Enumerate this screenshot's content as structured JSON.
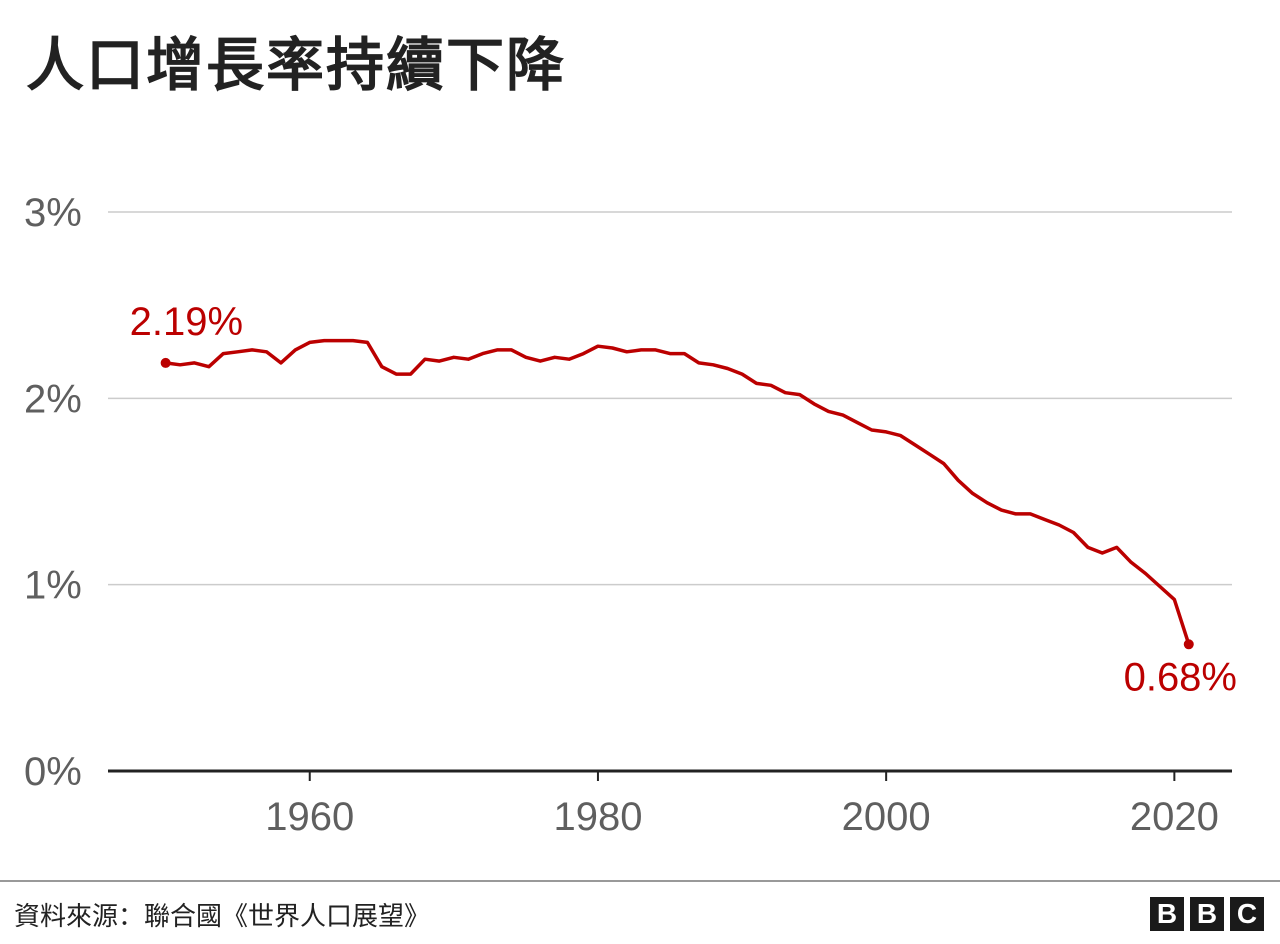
{
  "title": "人口增長率持續下降",
  "source": "資料來源：聯合國《世界人口展望》",
  "logo": [
    "B",
    "B",
    "C"
  ],
  "colors": {
    "line": "#bb0000",
    "grid": "#cccccc",
    "axis": "#222222",
    "tick_text": "#5f5f5f"
  },
  "chart_data": {
    "type": "line",
    "title": "人口增長率持續下降",
    "xlabel": "",
    "ylabel": "",
    "xlim": [
      1946,
      2024
    ],
    "ylim": [
      0,
      3
    ],
    "x_ticks": [
      1960,
      1980,
      2000,
      2020
    ],
    "y_ticks": [
      0,
      1,
      2,
      3
    ],
    "y_tick_labels": [
      "0%",
      "1%",
      "2%",
      "3%"
    ],
    "grid": true,
    "legend": "none",
    "series": [
      {
        "x": [
          1950,
          1951,
          1952,
          1953,
          1954,
          1955,
          1956,
          1957,
          1958,
          1959,
          1960,
          1961,
          1962,
          1963,
          1964,
          1965,
          1966,
          1967,
          1968,
          1969,
          1970,
          1971,
          1972,
          1973,
          1974,
          1975,
          1976,
          1977,
          1978,
          1979,
          1980,
          1981,
          1982,
          1983,
          1984,
          1985,
          1986,
          1987,
          1988,
          1989,
          1990,
          1991,
          1992,
          1993,
          1994,
          1995,
          1996,
          1997,
          1998,
          1999,
          2000,
          2001,
          2002,
          2003,
          2004,
          2005,
          2006,
          2007,
          2008,
          2009,
          2010,
          2011,
          2012,
          2013,
          2014,
          2015,
          2016,
          2017,
          2018,
          2019,
          2020,
          2021
        ],
        "values": [
          2.19,
          2.18,
          2.19,
          2.17,
          2.24,
          2.25,
          2.26,
          2.25,
          2.19,
          2.26,
          2.3,
          2.31,
          2.31,
          2.31,
          2.3,
          2.17,
          2.13,
          2.13,
          2.21,
          2.2,
          2.22,
          2.21,
          2.24,
          2.26,
          2.26,
          2.22,
          2.2,
          2.22,
          2.21,
          2.24,
          2.28,
          2.27,
          2.25,
          2.26,
          2.26,
          2.24,
          2.24,
          2.19,
          2.18,
          2.16,
          2.13,
          2.08,
          2.07,
          2.03,
          2.02,
          1.97,
          1.93,
          1.91,
          1.87,
          1.83,
          1.82,
          1.8,
          1.75,
          1.7,
          1.65,
          1.56,
          1.49,
          1.44,
          1.4,
          1.38,
          1.38,
          1.35,
          1.32,
          1.28,
          1.2,
          1.17,
          1.2,
          1.12,
          1.06,
          0.99,
          0.92,
          0.68
        ]
      }
    ],
    "annotations": [
      {
        "text": "2.19%",
        "x": 1950,
        "y": 2.19
      },
      {
        "text": "0.68%",
        "x": 2021,
        "y": 0.68
      }
    ]
  }
}
